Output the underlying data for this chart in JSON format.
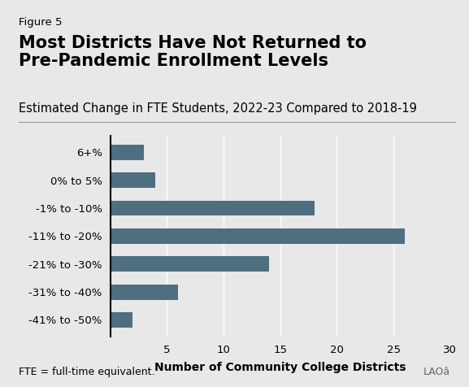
{
  "figure_label": "Figure 5",
  "title": "Most Districts Have Not Returned to\nPre-Pandemic Enrollment Levels",
  "subtitle": "Estimated Change in FTE Students, 2022-23 Compared to 2018-19",
  "categories": [
    "6+%",
    "0% to 5%",
    "-1% to -10%",
    "-11% to -20%",
    "-21% to -30%",
    "-31% to -40%",
    "-41% to -50%"
  ],
  "values": [
    3,
    4,
    18,
    26,
    14,
    6,
    2
  ],
  "bar_color": "#4d6f80",
  "xlabel": "Number of Community College Districts",
  "xlim": [
    0,
    30
  ],
  "xticks": [
    5,
    10,
    15,
    20,
    25,
    30
  ],
  "xtick_labels": [
    "5",
    "10",
    "15",
    "20",
    "25",
    "30"
  ],
  "footnote": "FTE = full-time equivalent.",
  "background_color": "#e8e8e8",
  "title_fontsize": 15,
  "subtitle_fontsize": 10.5,
  "figure_label_fontsize": 9.5,
  "xlabel_fontsize": 10,
  "tick_fontsize": 9.5,
  "footnote_fontsize": 9
}
